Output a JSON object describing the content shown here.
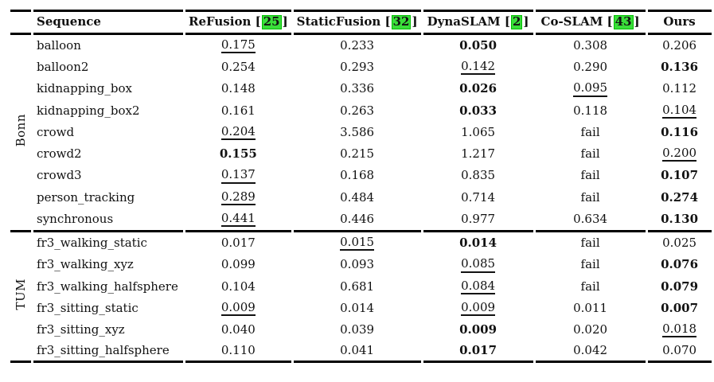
{
  "table": {
    "corner_label": "",
    "columns": [
      {
        "label": "Sequence",
        "cite": null
      },
      {
        "label": "ReFusion",
        "cite": "25"
      },
      {
        "label": "StaticFusion",
        "cite": "32"
      },
      {
        "label": "DynaSLAM",
        "cite": "2"
      },
      {
        "label": "Co-SLAM",
        "cite": "43"
      },
      {
        "label": "Ours",
        "cite": null
      }
    ],
    "colors": {
      "citation_green": "#3ade3a",
      "citation_green_border": "#00bf00",
      "text": "#111111",
      "rule": "#000000"
    },
    "fail_label": "fail",
    "groups": [
      {
        "label": "Bonn",
        "rows": [
          {
            "seq": "balloon",
            "vals": [
              {
                "v": "0.175",
                "s": "u"
              },
              {
                "v": "0.233",
                "s": "n"
              },
              {
                "v": "0.050",
                "s": "b"
              },
              {
                "v": "0.308",
                "s": "n"
              },
              {
                "v": "0.206",
                "s": "n"
              }
            ]
          },
          {
            "seq": "balloon2",
            "vals": [
              {
                "v": "0.254",
                "s": "n"
              },
              {
                "v": "0.293",
                "s": "n"
              },
              {
                "v": "0.142",
                "s": "u"
              },
              {
                "v": "0.290",
                "s": "n"
              },
              {
                "v": "0.136",
                "s": "b"
              }
            ]
          },
          {
            "seq": "kidnapping_box",
            "vals": [
              {
                "v": "0.148",
                "s": "n"
              },
              {
                "v": "0.336",
                "s": "n"
              },
              {
                "v": "0.026",
                "s": "b"
              },
              {
                "v": "0.095",
                "s": "u"
              },
              {
                "v": "0.112",
                "s": "n"
              }
            ]
          },
          {
            "seq": "kidnapping_box2",
            "vals": [
              {
                "v": "0.161",
                "s": "n"
              },
              {
                "v": "0.263",
                "s": "n"
              },
              {
                "v": "0.033",
                "s": "b"
              },
              {
                "v": "0.118",
                "s": "n"
              },
              {
                "v": "0.104",
                "s": "u"
              }
            ]
          },
          {
            "seq": "crowd",
            "vals": [
              {
                "v": "0.204",
                "s": "u"
              },
              {
                "v": "3.586",
                "s": "n"
              },
              {
                "v": "1.065",
                "s": "n"
              },
              {
                "v": "fail",
                "s": "n"
              },
              {
                "v": "0.116",
                "s": "b"
              }
            ]
          },
          {
            "seq": "crowd2",
            "vals": [
              {
                "v": "0.155",
                "s": "b"
              },
              {
                "v": "0.215",
                "s": "n"
              },
              {
                "v": "1.217",
                "s": "n"
              },
              {
                "v": "fail",
                "s": "n"
              },
              {
                "v": "0.200",
                "s": "u"
              }
            ]
          },
          {
            "seq": "crowd3",
            "vals": [
              {
                "v": "0.137",
                "s": "u"
              },
              {
                "v": "0.168",
                "s": "n"
              },
              {
                "v": "0.835",
                "s": "n"
              },
              {
                "v": "fail",
                "s": "n"
              },
              {
                "v": "0.107",
                "s": "b"
              }
            ]
          },
          {
            "seq": "person_tracking",
            "vals": [
              {
                "v": "0.289",
                "s": "u"
              },
              {
                "v": "0.484",
                "s": "n"
              },
              {
                "v": "0.714",
                "s": "n"
              },
              {
                "v": "fail",
                "s": "n"
              },
              {
                "v": "0.274",
                "s": "b"
              }
            ]
          },
          {
            "seq": "synchronous",
            "vals": [
              {
                "v": "0.441",
                "s": "u"
              },
              {
                "v": "0.446",
                "s": "n"
              },
              {
                "v": "0.977",
                "s": "n"
              },
              {
                "v": "0.634",
                "s": "n"
              },
              {
                "v": "0.130",
                "s": "b"
              }
            ]
          }
        ]
      },
      {
        "label": "TUM",
        "rows": [
          {
            "seq": "fr3_walking_static",
            "vals": [
              {
                "v": "0.017",
                "s": "n"
              },
              {
                "v": "0.015",
                "s": "u"
              },
              {
                "v": "0.014",
                "s": "b"
              },
              {
                "v": "fail",
                "s": "n"
              },
              {
                "v": "0.025",
                "s": "n"
              }
            ]
          },
          {
            "seq": "fr3_walking_xyz",
            "vals": [
              {
                "v": "0.099",
                "s": "n"
              },
              {
                "v": "0.093",
                "s": "n"
              },
              {
                "v": "0.085",
                "s": "u"
              },
              {
                "v": "fail",
                "s": "n"
              },
              {
                "v": "0.076",
                "s": "b"
              }
            ]
          },
          {
            "seq": "fr3_walking_halfsphere",
            "vals": [
              {
                "v": "0.104",
                "s": "n"
              },
              {
                "v": "0.681",
                "s": "n"
              },
              {
                "v": "0.084",
                "s": "u"
              },
              {
                "v": "fail",
                "s": "n"
              },
              {
                "v": "0.079",
                "s": "b"
              }
            ]
          },
          {
            "seq": "fr3_sitting_static",
            "vals": [
              {
                "v": "0.009",
                "s": "u"
              },
              {
                "v": "0.014",
                "s": "n"
              },
              {
                "v": "0.009",
                "s": "u"
              },
              {
                "v": "0.011",
                "s": "n"
              },
              {
                "v": "0.007",
                "s": "b"
              }
            ]
          },
          {
            "seq": "fr3_sitting_xyz",
            "vals": [
              {
                "v": "0.040",
                "s": "n"
              },
              {
                "v": "0.039",
                "s": "n"
              },
              {
                "v": "0.009",
                "s": "b"
              },
              {
                "v": "0.020",
                "s": "n"
              },
              {
                "v": "0.018",
                "s": "u"
              }
            ]
          },
          {
            "seq": "fr3_sitting_halfsphere",
            "vals": [
              {
                "v": "0.110",
                "s": "n"
              },
              {
                "v": "0.041",
                "s": "n"
              },
              {
                "v": "0.017",
                "s": "b"
              },
              {
                "v": "0.042",
                "s": "n"
              },
              {
                "v": "0.070",
                "s": "n"
              }
            ]
          }
        ]
      }
    ]
  }
}
